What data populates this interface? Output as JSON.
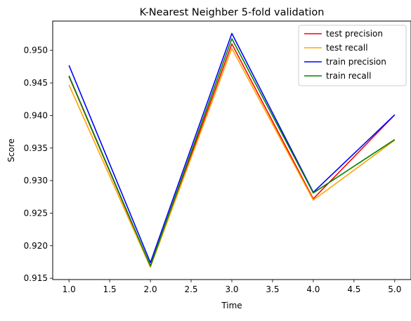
{
  "chart_data": {
    "type": "line",
    "title": "K-Nearest Neighber 5-fold validation",
    "xlabel": "Time",
    "ylabel": "Score",
    "x": [
      1.0,
      2.0,
      3.0,
      4.0,
      5.0
    ],
    "xlim": [
      0.8,
      5.2
    ],
    "ylim": [
      0.9148,
      0.9545
    ],
    "xticks": [
      1.0,
      1.5,
      2.0,
      2.5,
      3.0,
      3.5,
      4.0,
      4.5,
      5.0
    ],
    "xtick_labels": [
      "1.0",
      "1.5",
      "2.0",
      "2.5",
      "3.0",
      "3.5",
      "4.0",
      "4.5",
      "5.0"
    ],
    "yticks": [
      0.915,
      0.92,
      0.925,
      0.93,
      0.935,
      0.94,
      0.945,
      0.95
    ],
    "ytick_labels": [
      "0.915",
      "0.920",
      "0.925",
      "0.930",
      "0.935",
      "0.940",
      "0.945",
      "0.950"
    ],
    "grid": false,
    "legend_position": "top-right",
    "series": [
      {
        "name": "test precision",
        "color": "#ff0000",
        "values": [
          0.946,
          0.9168,
          0.951,
          0.9272,
          0.9401
        ]
      },
      {
        "name": "test recall",
        "color": "#ffa500",
        "values": [
          0.9447,
          0.9167,
          0.9503,
          0.927,
          0.9362
        ]
      },
      {
        "name": "train precision",
        "color": "#0000ff",
        "values": [
          0.9477,
          0.9174,
          0.9526,
          0.9282,
          0.9401
        ]
      },
      {
        "name": "train recall",
        "color": "#008000",
        "values": [
          0.9461,
          0.9169,
          0.9518,
          0.9281,
          0.9363
        ]
      }
    ]
  }
}
